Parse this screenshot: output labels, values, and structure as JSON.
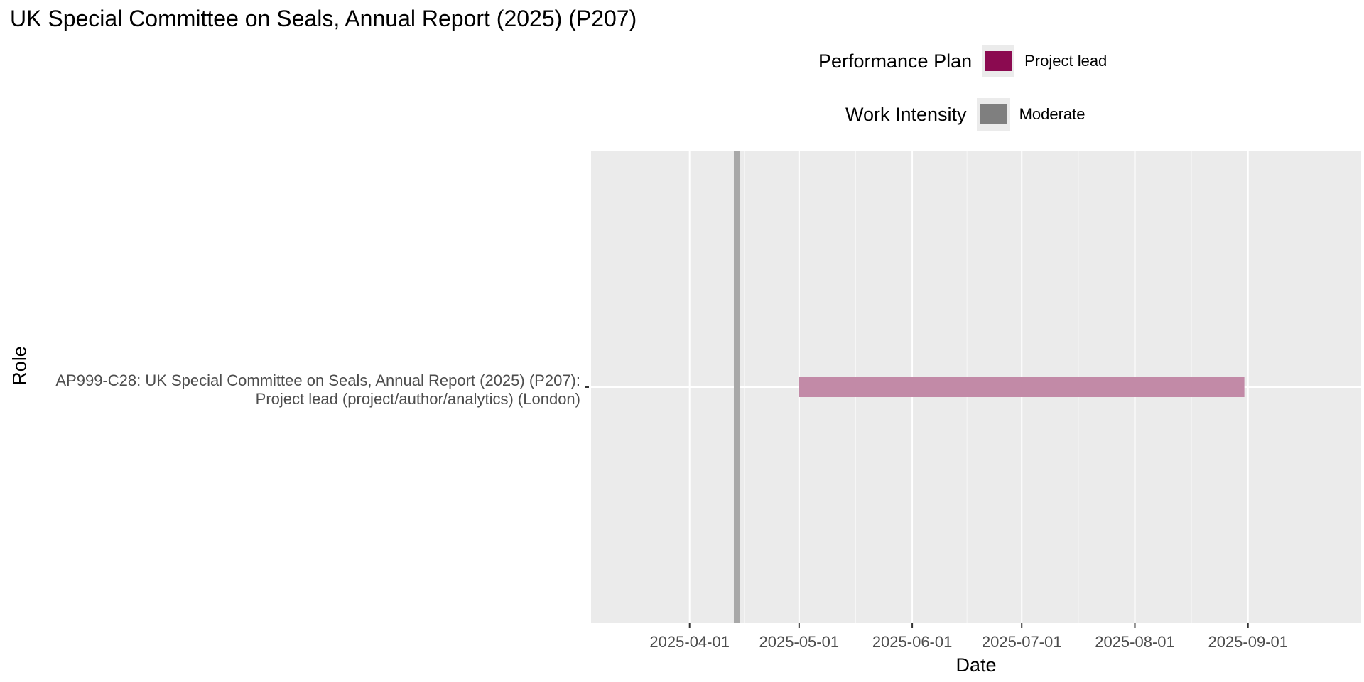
{
  "chart_data": {
    "type": "gantt",
    "title": "UK Special Committee on Seals, Annual Report (2025) (P207)",
    "xlabel": "Date",
    "ylabel": "Role",
    "xlim": [
      "2025-03-05",
      "2025-10-02"
    ],
    "x_ticks": [
      "2025-04-01",
      "2025-05-01",
      "2025-06-01",
      "2025-07-01",
      "2025-08-01",
      "2025-09-01"
    ],
    "grid": true,
    "categories": [
      {
        "line1": "AP999-C28: UK Special Committee on Seals, Annual Report (2025) (P207):",
        "line2": "Project lead (project/author/analytics) (London)"
      }
    ],
    "bars": [
      {
        "category": 0,
        "start": "2025-05-01",
        "end": "2025-08-31",
        "performance_plan": "Project lead",
        "work_intensity": "Moderate"
      }
    ],
    "reference_lines": [
      {
        "date": "2025-04-14"
      }
    ],
    "legends": [
      {
        "title": "Performance Plan",
        "label": "Project lead",
        "color": "#8b0a50"
      },
      {
        "title": "Work Intensity",
        "label": "Moderate",
        "color": "#7f7f7f"
      }
    ]
  },
  "colors": {
    "panel_background": "#ebebeb",
    "gridline": "#ffffff",
    "bar_fill": "#c28aa7",
    "reference_line": "#a8a8a8"
  }
}
